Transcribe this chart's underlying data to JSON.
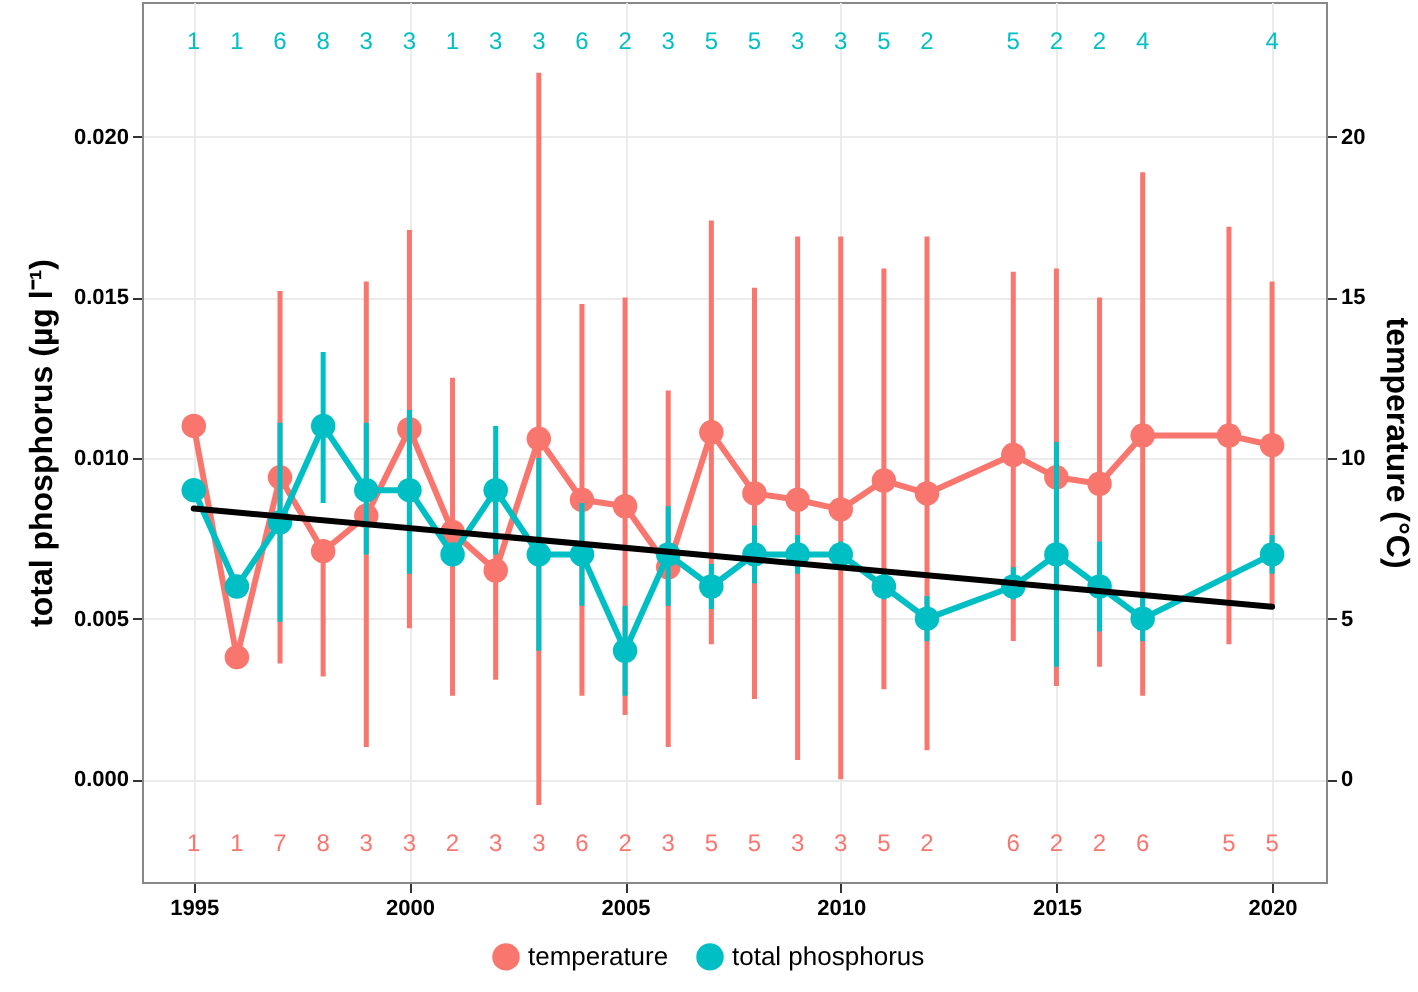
{
  "chart_data": {
    "type": "line",
    "xlabel": null,
    "ylabel": "total phosphorus (µg l⁻¹)",
    "y2label": "temperature (°C)",
    "x": [
      1995,
      1996,
      1997,
      1998,
      1999,
      2000,
      2001,
      2002,
      2003,
      2004,
      2005,
      2006,
      2007,
      2008,
      2009,
      2010,
      2011,
      2012,
      2014,
      2015,
      2016,
      2017,
      2020
    ],
    "series": [
      {
        "name": "temperature",
        "color": "#f8766d",
        "axis": "y2",
        "x": [
          1995,
          1996,
          1997,
          1998,
          1999,
          2000,
          2001,
          2002,
          2003,
          2004,
          2005,
          2006,
          2007,
          2008,
          2009,
          2010,
          2011,
          2012,
          2014,
          2015,
          2016,
          2017,
          2019,
          2020
        ],
        "values": [
          11.0,
          3.8,
          9.4,
          7.1,
          8.2,
          10.9,
          7.7,
          6.5,
          10.6,
          8.7,
          8.5,
          6.6,
          10.8,
          8.9,
          8.7,
          8.4,
          9.3,
          8.9,
          10.1,
          9.4,
          9.2,
          10.7,
          10.7,
          10.4
        ],
        "errors": [
          null,
          null,
          [
            3.6,
            15.2
          ],
          [
            3.2,
            7.1
          ],
          [
            1.0,
            15.5
          ],
          [
            4.7,
            17.1
          ],
          [
            2.6,
            12.5
          ],
          [
            3.1,
            9.9
          ],
          [
            -0.8,
            22.0
          ],
          [
            2.6,
            14.8
          ],
          [
            2.0,
            15.0
          ],
          [
            1.0,
            12.1
          ],
          [
            4.2,
            17.4
          ],
          [
            2.5,
            15.3
          ],
          [
            0.6,
            16.9
          ],
          [
            0.0,
            16.9
          ],
          [
            2.8,
            15.9
          ],
          [
            0.9,
            16.9
          ],
          [
            4.3,
            15.8
          ],
          [
            2.9,
            15.9
          ],
          [
            3.5,
            15.0
          ],
          [
            2.6,
            18.9
          ],
          [
            4.2,
            17.2
          ],
          [
            5.3,
            15.5
          ]
        ]
      },
      {
        "name": "total phosphorus",
        "color": "#00bfc4",
        "values": [
          0.009,
          0.006,
          0.008,
          0.011,
          0.009,
          0.009,
          0.007,
          0.009,
          0.007,
          0.007,
          0.004,
          0.007,
          0.006,
          0.007,
          0.007,
          0.007,
          0.006,
          0.005,
          0.006,
          0.007,
          0.006,
          0.005,
          0.007
        ],
        "errors": [
          null,
          null,
          [
            0.0049,
            0.0111
          ],
          [
            0.0086,
            0.0133
          ],
          [
            0.007,
            0.0111
          ],
          [
            0.0064,
            0.0115
          ],
          null,
          [
            0.007,
            0.011
          ],
          [
            0.004,
            0.01
          ],
          [
            0.0054,
            0.0086
          ],
          [
            0.0026,
            0.0054
          ],
          [
            0.0054,
            0.0085
          ],
          [
            0.0053,
            0.0067
          ],
          [
            0.0061,
            0.0079
          ],
          [
            0.0064,
            0.0076
          ],
          [
            0.0066,
            0.0074
          ],
          [
            0.0056,
            0.0064
          ],
          [
            0.0043,
            0.0057
          ],
          [
            0.0056,
            0.0066
          ],
          [
            0.0035,
            0.0105
          ],
          [
            0.0046,
            0.0074
          ],
          [
            0.0043,
            0.0057
          ],
          [
            0.0064,
            0.0076
          ]
        ]
      },
      {
        "type": "line",
        "color": "#000000",
        "marker": "none",
        "x": [
          1995,
          2020
        ],
        "values": [
          0.00843,
          0.00537
        ]
      }
    ],
    "xlim": [
      1993.8,
      2021.25
    ],
    "xticks": [
      1995,
      2000,
      2005,
      2010,
      2015,
      2020
    ],
    "ylim": [
      -0.0032,
      0.0242
    ],
    "yticks": [
      {
        "value": 0,
        "label": "0.000"
      },
      {
        "value": 0.005,
        "label": "0.005"
      },
      {
        "value": 0.01,
        "label": "0.010"
      },
      {
        "value": 0.015,
        "label": "0.015"
      },
      {
        "value": 0.02,
        "label": "0.020"
      }
    ],
    "y2lim": [
      -3.2,
      24.2
    ],
    "y2ticks": [
      0,
      5,
      10,
      15,
      20
    ],
    "marker": "circle",
    "grid": true,
    "legend": "bottom",
    "annotations": [
      "1",
      "1",
      "6",
      "8",
      "3",
      "3",
      "1",
      "3",
      "3",
      "6",
      "2",
      "3",
      "5",
      "5",
      "3",
      "3",
      "5",
      "2",
      "5",
      "2",
      "2",
      "4",
      "4",
      "1",
      "1",
      "7",
      "8",
      "3",
      "3",
      "2",
      "3",
      "3",
      "6",
      "2",
      "3",
      "5",
      "5",
      "3",
      "3",
      "5",
      "2",
      "6",
      "2",
      "2",
      "6",
      "5",
      "5"
    ]
  }
}
